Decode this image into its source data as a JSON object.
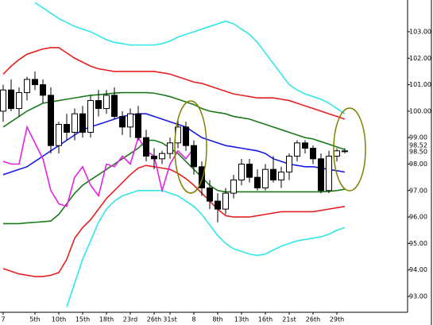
{
  "chart_data": {
    "type": "candlestick",
    "categories": [
      "7",
      null,
      null,
      null,
      "5th",
      null,
      null,
      "10th",
      null,
      null,
      "15th",
      null,
      null,
      "18th",
      null,
      null,
      "23rd",
      null,
      null,
      "26th",
      null,
      "31st",
      null,
      null,
      "8",
      null,
      null,
      "8th",
      null,
      null,
      "13th",
      null,
      null,
      "16th",
      null,
      null,
      "21st",
      null,
      null,
      "26th",
      null,
      null,
      "29th",
      null
    ],
    "open": [
      100.0,
      100.8,
      100.1,
      100.7,
      101.2,
      101.0,
      100.6,
      98.7,
      99.5,
      99.2,
      99.9,
      99.2,
      100.4,
      100.1,
      100.6,
      99.8,
      99.4,
      99.9,
      99.0,
      98.3,
      98.2,
      98.4,
      98.8,
      99.4,
      98.7,
      97.9,
      97.1,
      96.6,
      96.3,
      96.9,
      97.4,
      98.0,
      97.5,
      97.1,
      97.8,
      97.4,
      97.7,
      98.3,
      98.8,
      98.6,
      98.2,
      97.0,
      98.3,
      98.5
    ],
    "high": [
      101.0,
      101.2,
      100.9,
      101.3,
      101.5,
      101.2,
      100.9,
      99.6,
      99.9,
      100.1,
      100.2,
      100.6,
      100.8,
      100.8,
      100.9,
      100.0,
      100.1,
      100.2,
      99.3,
      98.6,
      98.5,
      99.0,
      99.7,
      99.6,
      98.9,
      98.1,
      97.4,
      96.9,
      97.1,
      97.6,
      98.2,
      98.2,
      97.8,
      98.0,
      98.3,
      97.9,
      98.4,
      98.9,
      98.9,
      98.7,
      98.4,
      98.5,
      98.6,
      98.6
    ],
    "low": [
      99.6,
      100.0,
      99.8,
      100.4,
      100.8,
      100.3,
      98.4,
      98.4,
      98.9,
      98.9,
      99.0,
      99.0,
      99.8,
      99.9,
      99.7,
      99.1,
      99.0,
      98.9,
      98.1,
      97.8,
      98.0,
      98.2,
      98.6,
      98.5,
      97.6,
      96.8,
      96.3,
      95.8,
      96.1,
      96.7,
      97.2,
      97.3,
      97.0,
      97.0,
      97.3,
      97.1,
      97.4,
      98.1,
      98.4,
      98.0,
      96.9,
      96.9,
      98.1,
      98.4
    ],
    "close": [
      100.8,
      100.1,
      100.7,
      101.2,
      101.0,
      100.6,
      98.7,
      99.5,
      99.2,
      99.9,
      99.2,
      100.4,
      100.1,
      100.6,
      99.8,
      99.4,
      99.9,
      99.0,
      98.3,
      98.2,
      98.4,
      98.8,
      99.4,
      98.7,
      97.9,
      97.1,
      96.6,
      96.3,
      96.9,
      97.4,
      98.0,
      97.5,
      97.1,
      97.8,
      97.4,
      97.7,
      98.3,
      98.8,
      98.6,
      98.2,
      97.0,
      98.3,
      98.5,
      98.5
    ],
    "up_color": "#ffffff",
    "down_color": "#000000",
    "series": [
      {
        "color": "#33e6e6",
        "values": [
          null,
          null,
          null,
          null,
          104.1,
          103.9,
          103.7,
          103.5,
          103.35,
          103.2,
          103.1,
          103.0,
          102.85,
          102.7,
          102.6,
          102.55,
          102.5,
          102.5,
          102.5,
          102.5,
          102.55,
          102.65,
          102.8,
          102.9,
          103.0,
          103.1,
          103.2,
          103.3,
          103.4,
          103.3,
          103.1,
          102.9,
          102.6,
          102.2,
          101.8,
          101.4,
          101.0,
          100.8,
          100.65,
          100.55,
          100.45,
          100.3,
          100.1,
          99.9
        ]
      },
      {
        "color": "#e62020",
        "values": [
          101.4,
          101.7,
          101.95,
          102.15,
          102.25,
          102.35,
          102.4,
          102.4,
          102.2,
          102.0,
          101.85,
          101.7,
          101.6,
          101.55,
          101.5,
          101.5,
          101.5,
          101.5,
          101.5,
          101.5,
          101.45,
          101.4,
          101.3,
          101.2,
          101.1,
          101.05,
          100.95,
          100.85,
          100.75,
          100.65,
          100.6,
          100.55,
          100.5,
          100.5,
          100.5,
          100.45,
          100.4,
          100.3,
          100.2,
          100.1,
          100.0,
          99.9,
          99.8,
          99.7
        ]
      },
      {
        "color": "#1a7a1a",
        "values": [
          99.4,
          99.6,
          99.8,
          100.0,
          100.15,
          100.3,
          100.35,
          100.4,
          100.45,
          100.5,
          100.55,
          100.6,
          100.62,
          100.65,
          100.68,
          100.7,
          100.7,
          100.7,
          100.7,
          100.68,
          100.62,
          100.55,
          100.45,
          100.35,
          100.25,
          100.1,
          100.0,
          99.95,
          99.9,
          99.8,
          99.75,
          99.7,
          99.6,
          99.5,
          99.4,
          99.3,
          99.2,
          99.1,
          99.0,
          98.95,
          98.85,
          98.75,
          98.65,
          98.55
        ]
      },
      {
        "color": "#1a1ae6",
        "values": [
          97.6,
          97.7,
          97.8,
          97.9,
          98.1,
          98.3,
          98.5,
          98.7,
          98.9,
          99.1,
          99.3,
          99.4,
          99.5,
          99.6,
          99.7,
          99.8,
          99.85,
          99.9,
          99.9,
          99.8,
          99.7,
          99.6,
          99.5,
          99.4,
          99.2,
          99.0,
          98.9,
          98.8,
          98.7,
          98.65,
          98.6,
          98.55,
          98.5,
          98.4,
          98.2,
          98.1,
          98.0,
          97.95,
          97.9,
          97.9,
          97.85,
          97.8,
          97.75,
          97.7
        ]
      },
      {
        "color": "#1a7a1a",
        "values": [
          95.75,
          95.75,
          95.75,
          95.78,
          95.8,
          95.82,
          95.85,
          96.1,
          96.5,
          96.9,
          97.2,
          97.4,
          97.6,
          97.8,
          98.0,
          98.2,
          98.4,
          98.6,
          98.9,
          98.9,
          98.8,
          98.6,
          98.4,
          98.1,
          97.8,
          97.5,
          97.2,
          97.0,
          96.95,
          96.95,
          96.95,
          96.95,
          96.95,
          96.95,
          96.95,
          96.95,
          96.95,
          96.95,
          96.95,
          96.95,
          96.95,
          96.97,
          97.0,
          97.05
        ]
      },
      {
        "color": "#e62020",
        "values": [
          94.05,
          93.95,
          93.85,
          93.8,
          93.75,
          93.75,
          93.8,
          93.9,
          94.4,
          95.2,
          95.6,
          95.9,
          96.3,
          96.7,
          97.0,
          97.3,
          97.6,
          97.85,
          97.95,
          97.9,
          97.85,
          97.8,
          97.65,
          97.45,
          97.2,
          96.9,
          96.6,
          96.3,
          96.05,
          96.0,
          96.0,
          96.0,
          96.05,
          96.1,
          96.15,
          96.2,
          96.2,
          96.2,
          96.2,
          96.2,
          96.25,
          96.3,
          96.35,
          96.4
        ]
      },
      {
        "color": "#33e6e6",
        "values": [
          null,
          null,
          null,
          null,
          null,
          null,
          null,
          null,
          92.6,
          93.5,
          94.4,
          95.1,
          95.8,
          96.3,
          96.6,
          96.8,
          96.9,
          97.0,
          97.0,
          97.0,
          97.0,
          96.9,
          96.8,
          96.6,
          96.4,
          96.1,
          95.7,
          95.3,
          95.0,
          94.8,
          94.7,
          94.6,
          94.55,
          94.6,
          94.75,
          94.9,
          95.0,
          95.1,
          95.15,
          95.2,
          95.25,
          95.35,
          95.5,
          95.6
        ]
      },
      {
        "color": "#e620e6",
        "values": [
          98.1,
          98.0,
          98.0,
          99.4,
          98.8,
          98.2,
          97.0,
          96.5,
          96.4,
          97.5,
          97.9,
          97.2,
          96.8,
          98.0,
          97.9,
          98.3,
          98.0,
          99.0,
          98.5,
          98.3,
          97.0,
          98.0,
          98.5,
          98.2,
          98.6,
          null,
          null,
          null,
          null,
          null,
          null,
          null,
          null,
          null,
          null,
          null,
          null,
          null,
          null,
          null,
          null,
          null,
          null,
          null
        ]
      }
    ],
    "ylim": [
      92.4,
      104.2
    ],
    "yticks": [
      {
        "value": 93,
        "label": "93.00"
      },
      {
        "value": 94,
        "label": "94.00"
      },
      {
        "value": 95,
        "label": "95.00"
      },
      {
        "value": 96,
        "label": "96.00"
      },
      {
        "value": 97,
        "label": "97.00"
      },
      {
        "value": 98,
        "label": "98.00"
      },
      {
        "value": 99,
        "label": "99.00"
      },
      {
        "value": 100,
        "label": "100.00"
      },
      {
        "value": 101,
        "label": "101.00"
      },
      {
        "value": 102,
        "label": "102.00"
      },
      {
        "value": 103,
        "label": "103.00"
      }
    ],
    "price_labels": [
      {
        "value": 98.52,
        "label": "98.52",
        "color": "#e62020"
      },
      {
        "value": 98.5,
        "label": "98.50",
        "color": "#000000"
      }
    ]
  }
}
